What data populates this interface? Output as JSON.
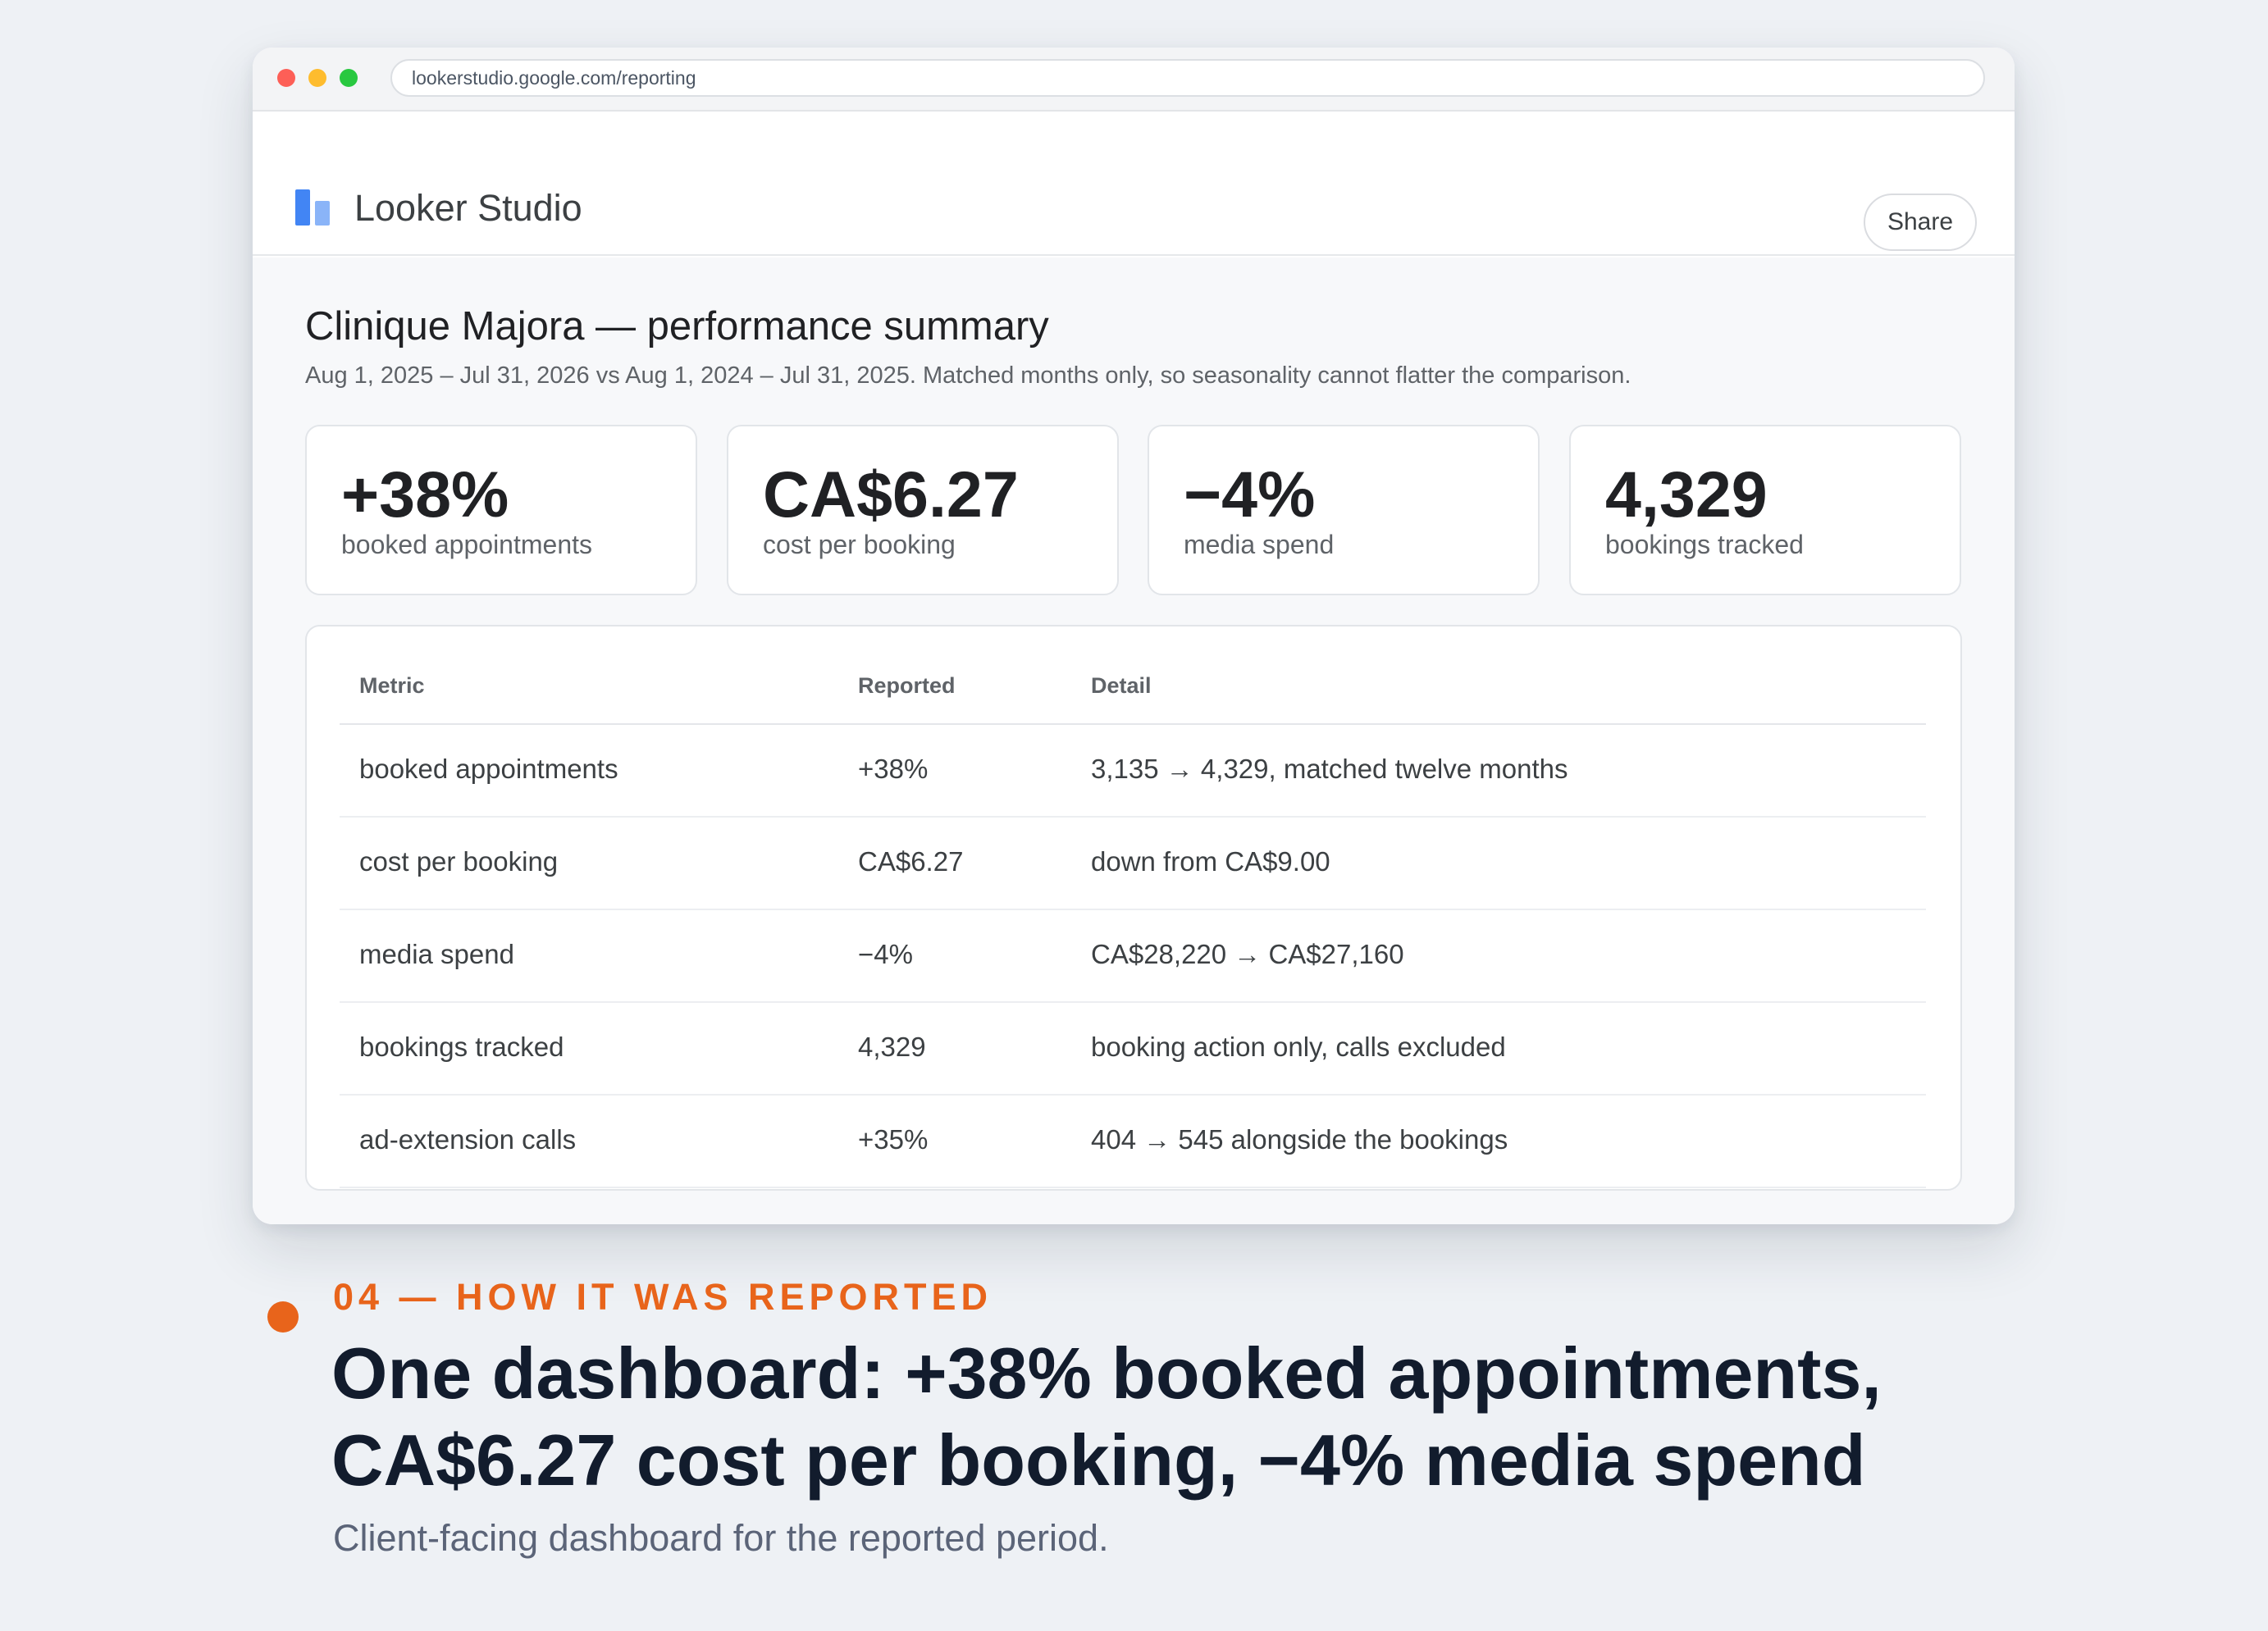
{
  "browser": {
    "url": "lookerstudio.google.com/reporting"
  },
  "app": {
    "name": "Looker Studio",
    "share_label": "Share"
  },
  "report": {
    "title": "Clinique Majora — performance summary",
    "subtitle": "Aug 1, 2025 – Jul 31, 2026 vs Aug 1, 2024 – Jul 31, 2025. Matched months only, so seasonality cannot flatter the comparison.",
    "kpis": [
      {
        "value": "+38%",
        "label": "booked appointments"
      },
      {
        "value": "CA$6.27",
        "label": "cost per booking"
      },
      {
        "value": "−4%",
        "label": "media spend"
      },
      {
        "value": "4,329",
        "label": "bookings tracked"
      }
    ],
    "table": {
      "headers": [
        "Metric",
        "Reported",
        "Detail"
      ],
      "rows": [
        {
          "metric": "booked appointments",
          "reported": "+38%",
          "detail": "3,135 → 4,329, matched twelve months"
        },
        {
          "metric": "cost per booking",
          "reported": "CA$6.27",
          "detail": "down from CA$9.00"
        },
        {
          "metric": "media spend",
          "reported": "−4%",
          "detail": "CA$28,220 → CA$27,160"
        },
        {
          "metric": "bookings tracked",
          "reported": "4,329",
          "detail": "booking action only, calls excluded"
        },
        {
          "metric": "ad-extension calls",
          "reported": "+35%",
          "detail": "404 → 545 alongside the bookings"
        }
      ]
    }
  },
  "caption": {
    "eyebrow": "04 — HOW IT WAS REPORTED",
    "headline_line1": "One dashboard: +38% booked appointments,",
    "headline_line2": "CA$6.27 cost per booking, −4% media spend",
    "description": "Client-facing dashboard for the reported period."
  },
  "colors": {
    "accent": "#e8641b",
    "logo_primary": "#4285f4",
    "logo_secondary": "#8ab4f8",
    "background": "#eef1f5"
  }
}
